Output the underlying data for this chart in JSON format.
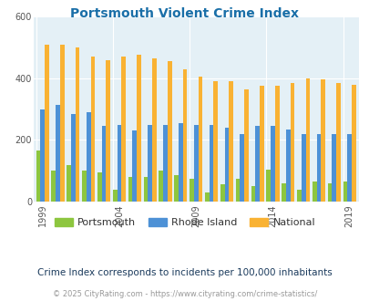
{
  "title": "Portsmouth Violent Crime Index",
  "years": [
    1999,
    2000,
    2001,
    2002,
    2003,
    2004,
    2005,
    2006,
    2007,
    2008,
    2009,
    2010,
    2011,
    2012,
    2013,
    2014,
    2015,
    2016,
    2017,
    2018,
    2019
  ],
  "portsmouth": [
    165,
    100,
    120,
    100,
    95,
    40,
    80,
    80,
    100,
    85,
    75,
    30,
    55,
    75,
    50,
    105,
    60,
    40,
    65,
    60,
    65
  ],
  "rhode_island": [
    300,
    315,
    285,
    290,
    245,
    250,
    230,
    250,
    250,
    255,
    250,
    250,
    240,
    220,
    245,
    245,
    235,
    220,
    220,
    220,
    220
  ],
  "national": [
    510,
    510,
    500,
    470,
    460,
    470,
    475,
    465,
    455,
    430,
    405,
    390,
    390,
    365,
    375,
    375,
    385,
    400,
    395,
    385,
    380
  ],
  "portsmouth_color": "#8dc63f",
  "rhode_island_color": "#4d91d6",
  "national_color": "#f9b233",
  "bg_color": "#e4f0f6",
  "ylim": [
    0,
    600
  ],
  "yticks": [
    0,
    200,
    400,
    600
  ],
  "subtitle": "Crime Index corresponds to incidents per 100,000 inhabitants",
  "footer": "© 2025 CityRating.com - https://www.cityrating.com/crime-statistics/",
  "xlabel_years": [
    1999,
    2004,
    2009,
    2014,
    2019
  ],
  "bar_width": 0.28
}
